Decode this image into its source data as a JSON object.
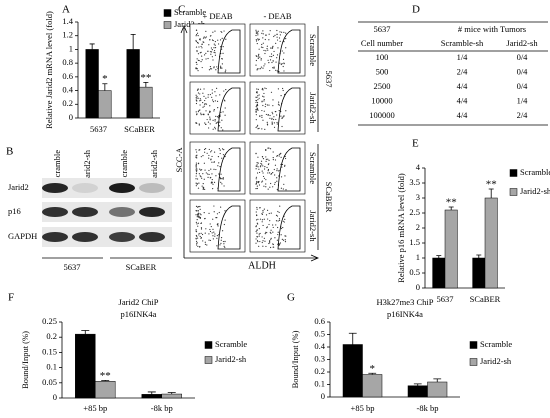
{
  "chart_data": [
    {
      "type": "bar",
      "panel": "A",
      "y_label": "Relative Jarid2 mRNA level (fold)",
      "categories": [
        "5637",
        "SCaBER"
      ],
      "series": [
        {
          "name": "Scramble",
          "color": "#000000",
          "values": [
            1.0,
            1.0
          ],
          "errors": [
            0.08,
            0.22
          ],
          "significance": [
            null,
            null
          ]
        },
        {
          "name": "Jarid2-sh",
          "color": "#a6a6a6",
          "values": [
            0.4,
            0.45
          ],
          "errors": [
            0.1,
            0.07
          ],
          "significance": [
            "*",
            "**"
          ]
        }
      ],
      "ylim": [
        0,
        1.4
      ],
      "yticks": [
        0,
        0.2,
        0.4,
        0.6,
        0.8,
        1,
        1.2,
        1.4
      ]
    },
    {
      "type": "bar",
      "panel": "E",
      "y_label": "Relative p16 mRNA level (fold)",
      "categories": [
        "5637",
        "SCaBER"
      ],
      "series": [
        {
          "name": "Scramble",
          "color": "#000000",
          "values": [
            1.0,
            1.0
          ],
          "errors": [
            0.08,
            0.1
          ],
          "significance": [
            null,
            null
          ]
        },
        {
          "name": "Jarid2-sh",
          "color": "#a6a6a6",
          "values": [
            2.6,
            3.0
          ],
          "errors": [
            0.1,
            0.3
          ],
          "significance": [
            "**",
            "**"
          ]
        }
      ],
      "ylim": [
        0,
        4
      ],
      "yticks": [
        0,
        0.5,
        1,
        1.5,
        2,
        2.5,
        3,
        3.5,
        4
      ]
    },
    {
      "type": "bar",
      "panel": "F",
      "title": "Jarid2 ChiP",
      "subtitle": "p16INK4a",
      "y_label": "Bound/Input (%)",
      "categories": [
        "+85 bp",
        "-8k bp"
      ],
      "series": [
        {
          "name": "Scramble",
          "color": "#000000",
          "values": [
            0.21,
            0.012
          ],
          "errors": [
            0.012,
            0.008
          ],
          "significance": [
            null,
            null
          ]
        },
        {
          "name": "Jarid2-sh",
          "color": "#a6a6a6",
          "values": [
            0.055,
            0.013
          ],
          "errors": [
            0.003,
            0.005
          ],
          "significance": [
            "**",
            null
          ]
        }
      ],
      "ylim": [
        0,
        0.25
      ],
      "yticks": [
        0,
        0.05,
        0.1,
        0.15,
        0.2,
        0.25
      ]
    },
    {
      "type": "bar",
      "panel": "G",
      "title": "H3k27me3 ChiP",
      "subtitle": "p16INK4a",
      "y_label": "Bound/Input (%)",
      "categories": [
        "+85 bp",
        "-8k bp"
      ],
      "series": [
        {
          "name": "Scramble",
          "color": "#000000",
          "values": [
            0.42,
            0.09
          ],
          "errors": [
            0.09,
            0.015
          ],
          "significance": [
            null,
            null
          ]
        },
        {
          "name": "Jarid2-sh",
          "color": "#a6a6a6",
          "values": [
            0.18,
            0.12
          ],
          "errors": [
            0.01,
            0.025
          ],
          "significance": [
            "*",
            null
          ]
        }
      ],
      "ylim": [
        0,
        0.6
      ],
      "yticks": [
        0,
        0.1,
        0.2,
        0.3,
        0.4,
        0.5,
        0.6
      ]
    }
  ],
  "blot": {
    "panel": "B",
    "lanes": [
      "Scramble",
      "Jarid2-sh",
      "Scramble",
      "Jarid2-sh"
    ],
    "rows": [
      "Jarid2",
      "p16",
      "GAPDH"
    ],
    "groups": [
      "5637",
      "SCaBER"
    ]
  },
  "flow": {
    "panel": "C",
    "columns": [
      "+ DEAB",
      "- DEAB"
    ],
    "rows": [
      "Scramble",
      "Jarid2-sh",
      "Scramble",
      "Jarid2-sh"
    ],
    "groups": [
      "5637",
      "SCaBER"
    ],
    "y_label": "SCC-A",
    "x_label": "ALDH"
  },
  "table": {
    "panel": "D",
    "header": [
      "5637",
      "# mice with Tumors"
    ],
    "subheader": [
      "Cell number",
      "Scramble-sh",
      "Jarid2-sh"
    ],
    "rows": [
      [
        "100",
        "1/4",
        "0/4"
      ],
      [
        "500",
        "2/4",
        "0/4"
      ],
      [
        "2500",
        "4/4",
        "0/4"
      ],
      [
        "10000",
        "4/4",
        "1/4"
      ],
      [
        "100000",
        "4/4",
        "2/4"
      ]
    ]
  }
}
